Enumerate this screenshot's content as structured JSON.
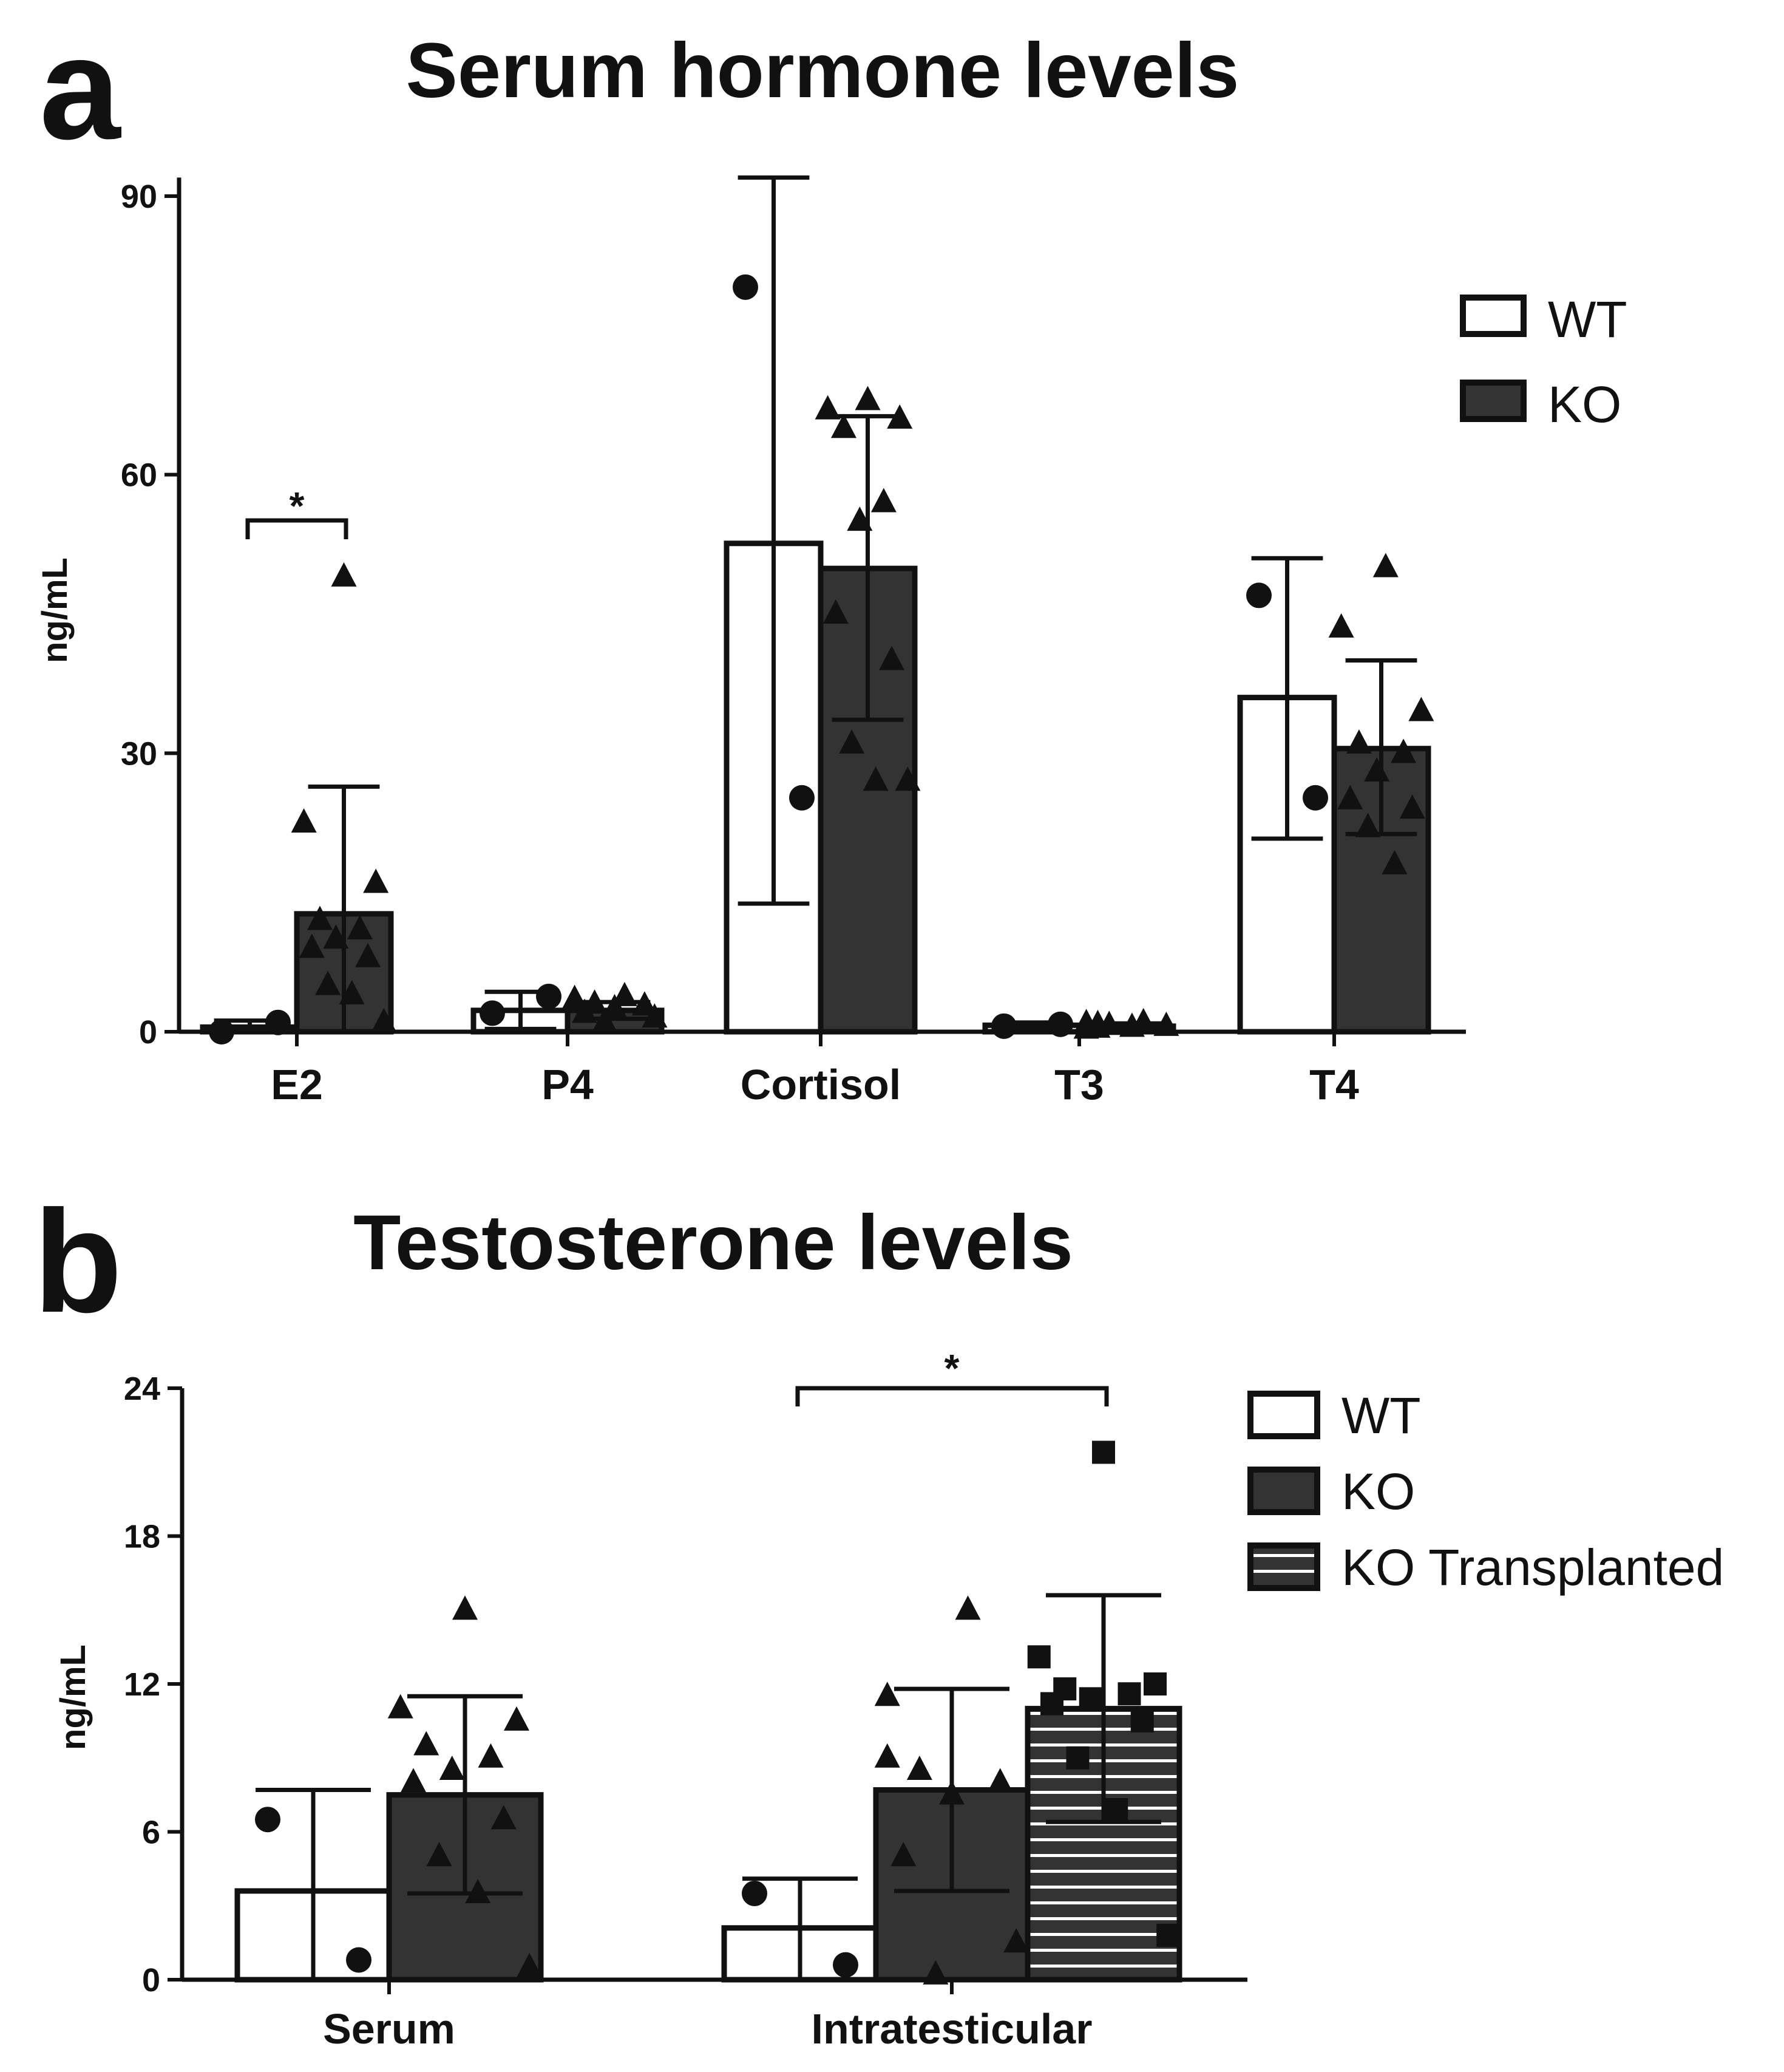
{
  "panel_a": {
    "letter": "a",
    "title": "Serum hormone levels",
    "ylabel": "ng/mL",
    "legend": [
      "WT",
      "KO"
    ],
    "significance": "*"
  },
  "panel_b": {
    "letter": "b",
    "title": "Testosterone levels",
    "ylabel": "ng/mL",
    "legend": [
      "WT",
      "KO",
      "KO Transplanted"
    ],
    "significance": "*"
  },
  "colors": {
    "wt_fill": "#ffffff",
    "ko_fill": "#333333",
    "stroke": "#111111",
    "stripe": "#ffffff"
  },
  "chart_data": [
    {
      "type": "bar",
      "title": "Serum hormone levels",
      "ylabel": "ng/mL",
      "xlabel": "",
      "ylim": [
        0,
        92
      ],
      "yticks": [
        0,
        30,
        60,
        90
      ],
      "categories": [
        "E2",
        "P4",
        "Cortisol",
        "T3",
        "T4"
      ],
      "series": [
        {
          "name": "WT",
          "marker": "circle",
          "values": [
            0.5,
            2.3,
            52.6,
            0.7,
            36
          ],
          "err_upper": [
            1.2,
            4.3,
            92,
            1.0,
            51
          ],
          "err_lower": [
            0,
            0.3,
            13.8,
            0.4,
            20.8
          ],
          "points": [
            [
              0,
              1.0
            ],
            [
              2.0,
              3.8
            ],
            [
              80.2,
              25.2
            ],
            [
              0.6,
              0.8
            ],
            [
              47,
              25.2
            ]
          ]
        },
        {
          "name": "KO",
          "marker": "triangle",
          "values": [
            12.7,
            2.3,
            49.9,
            0.6,
            30.5
          ],
          "err_upper": [
            26.4,
            3.2,
            66.3,
            0.9,
            40
          ],
          "err_lower": [
            0,
            1.4,
            33.6,
            0.3,
            21.3
          ],
          "points": [
            [
              49,
              22.5,
              16,
              12,
              11,
              10,
              9,
              8,
              5,
              4,
              1
            ],
            [
              3.8,
              3.5,
              3.2,
              3.0,
              2.8,
              2.5,
              2.0,
              1.5,
              1.0
            ],
            [
              68,
              67,
              66,
              65,
              57,
              55,
              45,
              40,
              31,
              27,
              27
            ],
            [
              1.0,
              0.9,
              0.8,
              0.7,
              0.6,
              0.5,
              0.4,
              0.3
            ],
            [
              50,
              43.5,
              34.5,
              31,
              30,
              28,
              25,
              24,
              22,
              18
            ]
          ]
        }
      ],
      "annotations": [
        {
          "text": "*",
          "between": [
            "E2 WT",
            "E2 KO"
          ]
        }
      ]
    },
    {
      "type": "bar",
      "title": "Testosterone levels",
      "ylabel": "ng/mL",
      "xlabel": "",
      "ylim": [
        0,
        24
      ],
      "yticks": [
        0,
        6,
        12,
        18,
        24
      ],
      "categories": [
        "Serum",
        "Intratesticular"
      ],
      "series": [
        {
          "name": "WT",
          "marker": "circle",
          "values": [
            3.6,
            2.1
          ],
          "err_upper": [
            7.7,
            4.1
          ],
          "err_lower": [
            0,
            0
          ],
          "points": [
            [
              6.5,
              0.8
            ],
            [
              3.5,
              0.6
            ]
          ]
        },
        {
          "name": "KO",
          "marker": "triangle",
          "values": [
            7.5,
            7.7
          ],
          "err_upper": [
            11.5,
            11.8
          ],
          "err_lower": [
            3.5,
            3.6
          ],
          "points": [
            [
              15,
              11,
              10.5,
              9.5,
              9,
              8.5,
              8,
              6.5,
              5,
              3.5,
              0.5
            ],
            [
              15,
              11.5,
              9,
              8.5,
              8,
              7.5,
              5,
              1.5,
              0.2
            ]
          ]
        },
        {
          "name": "KO Transplanted",
          "marker": "square",
          "values": [
            null,
            11
          ],
          "err_upper": [
            null,
            15.6
          ],
          "err_lower": [
            null,
            6.4
          ],
          "points": [
            [],
            [
              21.4,
              13.1,
              12,
              11.8,
              11.6,
              11.4,
              11.2,
              10.5,
              9,
              6.9,
              1.8
            ]
          ]
        }
      ],
      "annotations": [
        {
          "text": "*",
          "between": [
            "Intratesticular WT",
            "Intratesticular KO Transplanted"
          ]
        }
      ]
    }
  ]
}
